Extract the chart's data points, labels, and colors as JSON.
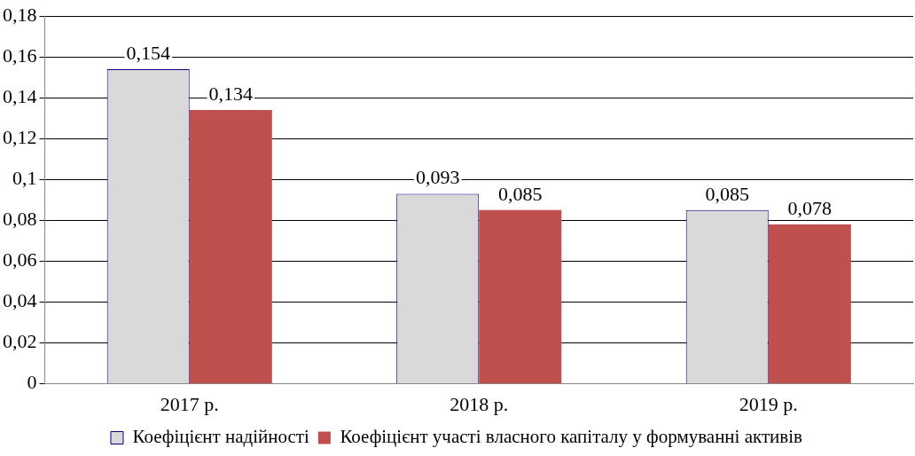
{
  "chart_data": {
    "type": "bar",
    "categories": [
      "2017 р.",
      "2018 р.",
      "2019 р."
    ],
    "series": [
      {
        "name": "Коефіцієнт надійності",
        "color": "#d9d9d9",
        "values": [
          0.154,
          0.093,
          0.085
        ],
        "value_labels": [
          "0,154",
          "0,093",
          "0,085"
        ]
      },
      {
        "name": "Коефіцієнт участі власного капіталу у формуванні активів",
        "color": "#c0504d",
        "values": [
          0.134,
          0.085,
          0.078
        ],
        "value_labels": [
          "0,134",
          "0,085",
          "0,078"
        ]
      }
    ],
    "ylim": [
      0,
      0.18
    ],
    "yticks": [
      0,
      {
        "value": 0.02,
        "label": "0,02"
      },
      {
        "value": 0.04,
        "label": "0,04"
      },
      {
        "value": 0.06,
        "label": "0,06"
      },
      {
        "value": 0.08,
        "label": "0,08"
      },
      {
        "value": 0.1,
        "label": "0,1"
      },
      {
        "value": 0.12,
        "label": "0,12"
      },
      {
        "value": 0.14,
        "label": "0,14"
      },
      {
        "value": 0.16,
        "label": "0,16"
      },
      {
        "value": 0.18,
        "label": "0,18"
      }
    ],
    "grid": "y",
    "legend": "bottom"
  }
}
